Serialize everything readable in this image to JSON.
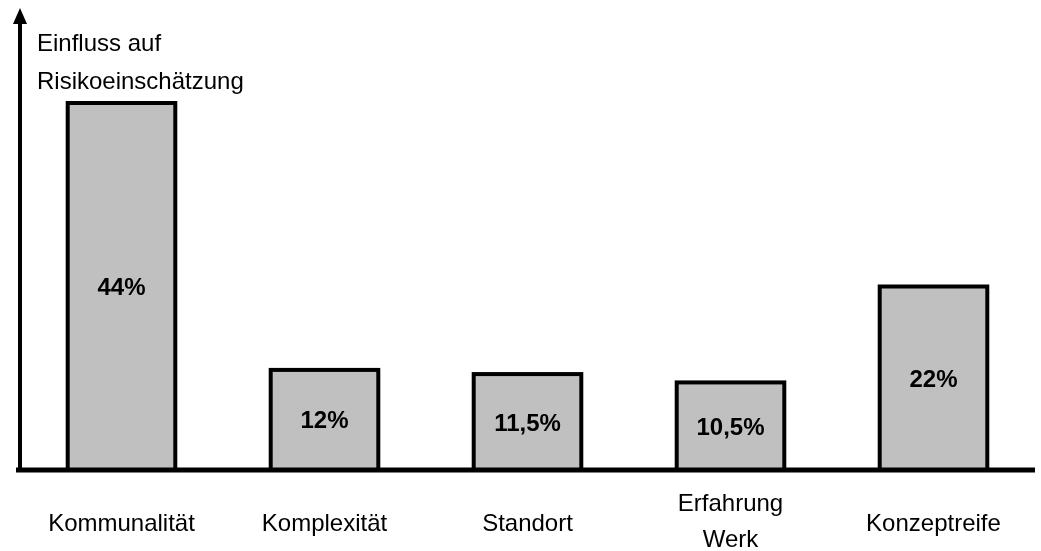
{
  "chart_data": {
    "type": "bar",
    "ylabel": "Einfluss auf Risikoeinschätzung",
    "categories": [
      "Kommunalität",
      "Komplexität",
      "Standort",
      "Erfahrung Werk",
      "Konzeptreife"
    ],
    "values": [
      44,
      12,
      11.5,
      10.5,
      22
    ],
    "value_labels": [
      "44%",
      "12%",
      "11,5%",
      "10,5%",
      "22%"
    ],
    "color": "#c0c0c0"
  }
}
